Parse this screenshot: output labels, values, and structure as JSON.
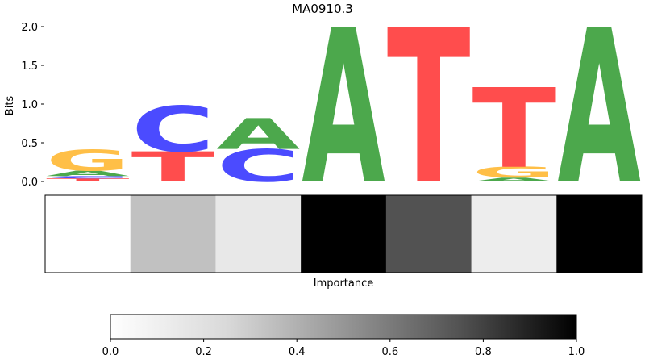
{
  "chart_data": [
    {
      "type": "sequence-logo",
      "title": "MA0910.3",
      "ylabel": "Bits",
      "ylim": [
        0,
        2
      ],
      "yticks": [
        "0.0",
        "0.5",
        "1.0",
        "1.5",
        "2.0"
      ],
      "alphabet_colors": {
        "A": "#4ca84c",
        "C": "#4b4bff",
        "G": "#ffbf47",
        "T": "#ff4d4d"
      },
      "positions": [
        {
          "stack": [
            {
              "letter": "T",
              "bits": 0.04
            },
            {
              "letter": "C",
              "bits": 0.03
            },
            {
              "letter": "A",
              "bits": 0.07
            },
            {
              "letter": "G",
              "bits": 0.27
            }
          ]
        },
        {
          "stack": [
            {
              "letter": "T",
              "bits": 0.39
            },
            {
              "letter": "C",
              "bits": 0.59
            }
          ]
        },
        {
          "stack": [
            {
              "letter": "C",
              "bits": 0.42
            },
            {
              "letter": "A",
              "bits": 0.4
            }
          ]
        },
        {
          "stack": [
            {
              "letter": "A",
              "bits": 2.0
            }
          ]
        },
        {
          "stack": [
            {
              "letter": "T",
              "bits": 2.0
            }
          ]
        },
        {
          "stack": [
            {
              "letter": "A",
              "bits": 0.05
            },
            {
              "letter": "G",
              "bits": 0.14
            },
            {
              "letter": "T",
              "bits": 1.03
            }
          ]
        },
        {
          "stack": [
            {
              "letter": "A",
              "bits": 2.0
            }
          ]
        }
      ]
    },
    {
      "type": "heatmap",
      "xlabel": "Importance",
      "values": [
        0.0,
        0.34,
        0.15,
        1.0,
        0.75,
        0.12,
        1.0
      ],
      "colorbar": {
        "range": [
          0.0,
          1.0
        ],
        "ticks": [
          "0.0",
          "0.2",
          "0.4",
          "0.6",
          "0.8",
          "1.0"
        ],
        "colormap": "Greys"
      }
    }
  ]
}
